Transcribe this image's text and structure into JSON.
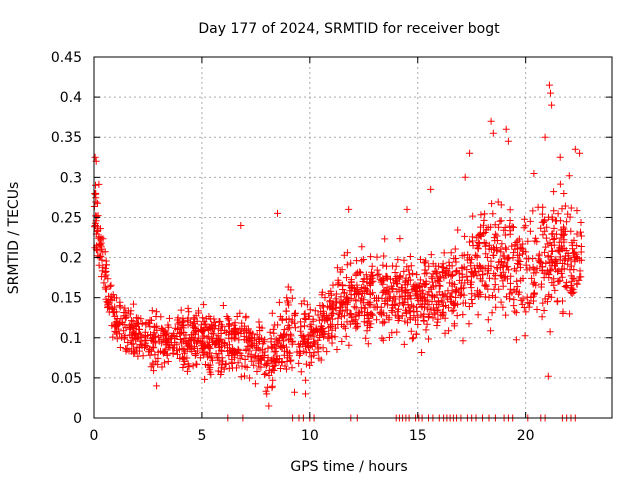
{
  "chart_data": {
    "type": "scatter",
    "title": "Day 177 of 2024, SRMTID for receiver bogt",
    "xlabel": "GPS time / hours",
    "ylabel": "SRMTID / TECUs",
    "xlim": [
      0,
      24
    ],
    "ylim": [
      0,
      0.45
    ],
    "x_ticks": [
      0,
      5,
      10,
      15,
      20
    ],
    "x_tick_labels": [
      "0",
      "5",
      "10",
      "15",
      "20"
    ],
    "y_ticks": [
      0,
      0.05,
      0.1,
      0.15,
      0.2,
      0.25,
      0.3,
      0.35,
      0.4,
      0.45
    ],
    "y_tick_labels": [
      "0",
      "0.05",
      "0.1",
      "0.15",
      "0.2",
      "0.25",
      "0.3",
      "0.35",
      "0.4",
      "0.45"
    ],
    "grid": true,
    "marker": "+",
    "color": "#ff0000",
    "series": [
      {
        "name": "SRMTID",
        "envelope": [
          {
            "x": 0.0,
            "mean": 0.27,
            "spread": 0.05
          },
          {
            "x": 0.3,
            "mean": 0.22,
            "spread": 0.05
          },
          {
            "x": 0.6,
            "mean": 0.16,
            "spread": 0.04
          },
          {
            "x": 1.0,
            "mean": 0.12,
            "spread": 0.03
          },
          {
            "x": 2.0,
            "mean": 0.1,
            "spread": 0.03
          },
          {
            "x": 3.0,
            "mean": 0.095,
            "spread": 0.035
          },
          {
            "x": 4.0,
            "mean": 0.1,
            "spread": 0.035
          },
          {
            "x": 5.0,
            "mean": 0.1,
            "spread": 0.04
          },
          {
            "x": 6.0,
            "mean": 0.09,
            "spread": 0.035
          },
          {
            "x": 7.0,
            "mean": 0.095,
            "spread": 0.04
          },
          {
            "x": 8.0,
            "mean": 0.07,
            "spread": 0.04
          },
          {
            "x": 9.0,
            "mean": 0.11,
            "spread": 0.05
          },
          {
            "x": 10.0,
            "mean": 0.1,
            "spread": 0.04
          },
          {
            "x": 11.0,
            "mean": 0.13,
            "spread": 0.04
          },
          {
            "x": 12.0,
            "mean": 0.15,
            "spread": 0.05
          },
          {
            "x": 13.0,
            "mean": 0.15,
            "spread": 0.05
          },
          {
            "x": 14.0,
            "mean": 0.16,
            "spread": 0.05
          },
          {
            "x": 15.0,
            "mean": 0.15,
            "spread": 0.05
          },
          {
            "x": 16.0,
            "mean": 0.16,
            "spread": 0.05
          },
          {
            "x": 17.0,
            "mean": 0.17,
            "spread": 0.06
          },
          {
            "x": 18.0,
            "mean": 0.2,
            "spread": 0.07
          },
          {
            "x": 19.0,
            "mean": 0.19,
            "spread": 0.07
          },
          {
            "x": 20.0,
            "mean": 0.19,
            "spread": 0.07
          },
          {
            "x": 21.0,
            "mean": 0.2,
            "spread": 0.08
          },
          {
            "x": 22.0,
            "mean": 0.2,
            "spread": 0.07
          },
          {
            "x": 22.6,
            "mean": 0.2,
            "spread": 0.06
          }
        ],
        "highlights": [
          {
            "x": 0.05,
            "y": 0.325
          },
          {
            "x": 0.1,
            "y": 0.32
          },
          {
            "x": 0.08,
            "y": 0.28
          },
          {
            "x": 6.8,
            "y": 0.24
          },
          {
            "x": 8.5,
            "y": 0.255
          },
          {
            "x": 11.8,
            "y": 0.26
          },
          {
            "x": 14.5,
            "y": 0.26
          },
          {
            "x": 15.6,
            "y": 0.285
          },
          {
            "x": 17.2,
            "y": 0.3
          },
          {
            "x": 17.4,
            "y": 0.33
          },
          {
            "x": 18.4,
            "y": 0.37
          },
          {
            "x": 18.5,
            "y": 0.355
          },
          {
            "x": 19.1,
            "y": 0.36
          },
          {
            "x": 19.2,
            "y": 0.345
          },
          {
            "x": 20.9,
            "y": 0.35
          },
          {
            "x": 21.1,
            "y": 0.415
          },
          {
            "x": 21.15,
            "y": 0.405
          },
          {
            "x": 21.2,
            "y": 0.39
          },
          {
            "x": 21.6,
            "y": 0.325
          },
          {
            "x": 22.3,
            "y": 0.335
          },
          {
            "x": 22.5,
            "y": 0.33
          },
          {
            "x": 8.1,
            "y": 0.015
          },
          {
            "x": 9.8,
            "y": 0.03
          },
          {
            "x": 21.05,
            "y": 0.052
          },
          {
            "x": 8.0,
            "y": 0.03
          },
          {
            "x": 2.9,
            "y": 0.04
          }
        ],
        "zero_values_x": [
          6.2,
          6.9,
          9.2,
          9.5,
          9.7,
          10.0,
          10.2,
          11.9,
          12.2,
          14.0,
          14.15,
          14.3,
          14.45,
          14.6,
          14.9,
          15.05,
          15.2,
          15.5,
          15.7,
          16.0,
          16.2,
          16.35,
          16.5,
          16.65,
          16.8,
          17.0,
          17.3,
          17.5,
          17.7,
          18.0,
          18.3,
          18.6,
          19.0,
          19.2,
          19.4,
          20.1,
          20.7,
          20.9,
          21.7,
          21.9,
          22.1,
          22.3
        ]
      }
    ]
  }
}
